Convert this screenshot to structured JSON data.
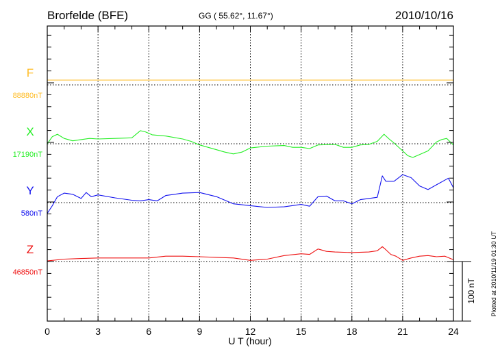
{
  "chart_data": {
    "type": "line",
    "title": "Brorfelde (BFE)",
    "subtitle": "GG ( 55.62°,  11.67°)",
    "date": "2010/10/16",
    "xlabel": "U T (hour)",
    "xlim": [
      0,
      24
    ],
    "x_ticks": [
      "0",
      "3",
      "6",
      "9",
      "12",
      "15",
      "18",
      "21",
      "24"
    ],
    "scale_bar_label": "100 nT",
    "scale_bar_nT": 100,
    "footer": "Plotted at 2010/11/19 01:30 UT",
    "grid": true,
    "series": [
      {
        "name": "F",
        "baseline_label": "88880nT",
        "color": "#ffbb22",
        "x": [
          0,
          24
        ],
        "values": [
          8,
          8
        ]
      },
      {
        "name": "X",
        "baseline_label": "17190nT",
        "color": "#22ee22",
        "x": [
          0,
          0.3,
          0.6,
          1,
          1.5,
          2,
          2.5,
          3,
          4,
          5,
          5.5,
          5.8,
          6.2,
          7,
          8,
          8.5,
          9,
          10,
          10.5,
          11,
          11.5,
          12,
          13,
          14,
          14.5,
          15,
          15.5,
          16,
          17,
          17.5,
          18,
          18.5,
          19,
          19.5,
          19.9,
          20.2,
          20.5,
          21,
          21.3,
          21.6,
          22,
          22.5,
          23,
          23.3,
          23.6,
          24
        ],
        "values": [
          0,
          12,
          16,
          9,
          5,
          7,
          9,
          8,
          9,
          10,
          22,
          20,
          15,
          13,
          8,
          4,
          -2,
          -10,
          -14,
          -17,
          -14,
          -7,
          -4,
          -3,
          -6,
          -6,
          -8,
          -2,
          -1,
          -6,
          -6,
          -2,
          -1,
          4,
          16,
          8,
          1,
          -12,
          -20,
          -23,
          -18,
          -12,
          3,
          7,
          9,
          -2
        ]
      },
      {
        "name": "Y",
        "baseline_label": "580nT",
        "color": "#1111ee",
        "x": [
          0,
          0.3,
          0.6,
          1,
          1.5,
          2,
          2.3,
          2.6,
          3,
          4,
          5,
          5.5,
          6,
          6.5,
          7,
          8,
          9,
          10,
          11,
          12,
          13,
          14,
          15,
          15.5,
          16,
          16.5,
          17,
          17.5,
          18,
          18.5,
          19,
          19.5,
          19.8,
          20,
          20.5,
          21,
          21.5,
          22,
          22.5,
          23,
          23.7,
          24
        ],
        "values": [
          -18,
          -5,
          10,
          16,
          14,
          7,
          17,
          10,
          13,
          8,
          4,
          3,
          5,
          3,
          12,
          16,
          17,
          10,
          -2,
          -5,
          -8,
          -7,
          -3,
          -6,
          10,
          11,
          3,
          3,
          -2,
          5,
          7,
          9,
          45,
          36,
          36,
          47,
          42,
          28,
          22,
          30,
          41,
          25
        ]
      },
      {
        "name": "Z",
        "baseline_label": "46850nT",
        "color": "#ee1111",
        "x": [
          0,
          1,
          2,
          3,
          4,
          5,
          6,
          7,
          8,
          9,
          10,
          11,
          12,
          13,
          14,
          15,
          15.5,
          16,
          16.5,
          17,
          18,
          19,
          19.5,
          19.8,
          20,
          20.3,
          20.6,
          21,
          21.5,
          22,
          22.5,
          23,
          23.5,
          24
        ],
        "values": [
          1,
          4,
          5,
          6,
          6,
          6,
          6,
          9,
          9,
          8,
          7,
          6,
          2,
          4,
          10,
          13,
          12,
          21,
          17,
          16,
          15,
          16,
          18,
          25,
          20,
          12,
          9,
          2,
          6,
          9,
          10,
          8,
          9,
          3
        ]
      }
    ]
  }
}
